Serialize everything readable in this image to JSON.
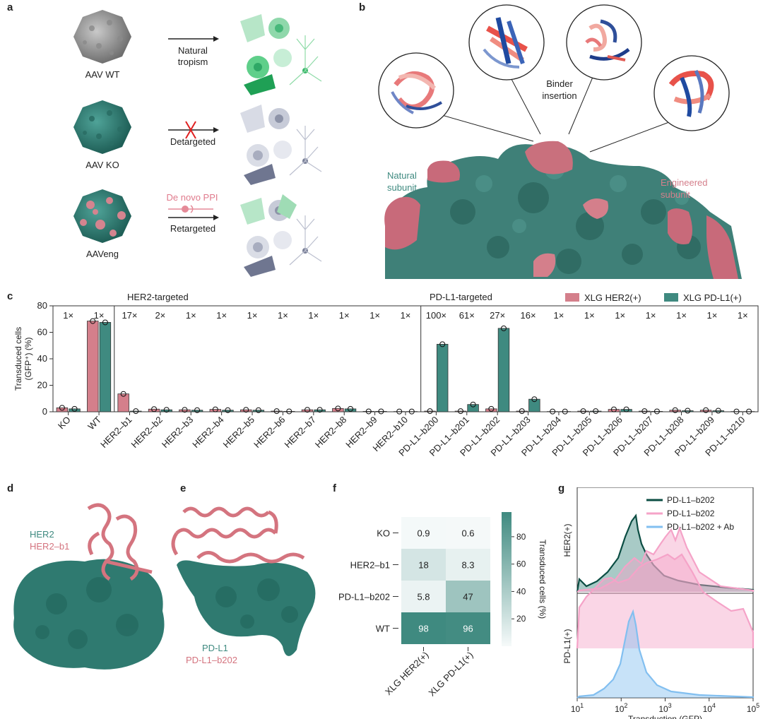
{
  "panels": {
    "a": "a",
    "b": "b",
    "c": "c",
    "d": "d",
    "e": "e",
    "f": "f",
    "g": "g"
  },
  "colors": {
    "teal": "#3f8a80",
    "pink": "#d47f8b",
    "dark_teal": "#0b4d43",
    "light_pink": "#f5a3c8",
    "light_blue": "#82bff0"
  },
  "panel_a": {
    "rows": [
      {
        "caption": "AAV WT",
        "arrow_label": "Natural\ntropism",
        "icon": "aav-wt-capsid-icon"
      },
      {
        "caption": "AAV KO",
        "arrow_label": "Detargeted",
        "icon": "aav-ko-capsid-icon"
      },
      {
        "caption": "AAVeng",
        "arrow_label": "Retargeted",
        "top_label": "De novo PPI",
        "icon": "aav-eng-capsid-icon"
      }
    ]
  },
  "panel_b": {
    "binder_label": "Binder\ninsertion",
    "natural_label": "Natural\nsubunit",
    "engineered_label": "Engineered\nsubunit"
  },
  "panel_c": {
    "chart_data": {
      "type": "bar",
      "ylabel": "Transduced cells\n(GFP⁺) (%)",
      "ylim": [
        0,
        80
      ],
      "yticks": [
        0,
        20,
        40,
        60,
        80
      ],
      "group_labels": [
        "HER2-targeted",
        "PD-L1-targeted"
      ],
      "categories": [
        "KO",
        "WT",
        "HER2–b1",
        "HER2–b2",
        "HER2–b3",
        "HER2–b4",
        "HER2–b5",
        "HER2–b6",
        "HER2–b7",
        "HER2–b8",
        "HER2–b9",
        "HER2–b10",
        "PD-L1–b200",
        "PD-L1–b201",
        "PD-L1–b202",
        "PD-L1–b203",
        "PD-L1–b204",
        "PD-L1–b205",
        "PD-L1–b206",
        "PD-L1–b207",
        "PD-L1–b208",
        "PD-L1–b209",
        "PD-L1–b210"
      ],
      "fold_labels": [
        "1×",
        "1×",
        "17×",
        "2×",
        "1×",
        "1×",
        "1×",
        "1×",
        "1×",
        "1×",
        "1×",
        "1×",
        "100×",
        "61×",
        "27×",
        "16×",
        "1×",
        "1×",
        "1×",
        "1×",
        "1×",
        "1×",
        "1×"
      ],
      "series": [
        {
          "name": "XLG HER2(+)",
          "values": [
            3,
            68.5,
            13.5,
            2,
            1.5,
            1.8,
            1.5,
            0.5,
            1.5,
            2.5,
            0.3,
            0.2,
            0.5,
            0.5,
            2.2,
            0.5,
            0.2,
            0.5,
            1.8,
            0.5,
            1.2,
            1.2,
            0.2
          ]
        },
        {
          "name": "XLG PD-L1(+)",
          "values": [
            2.2,
            67.5,
            0.5,
            1.5,
            1.2,
            1.2,
            1.2,
            0.3,
            1.5,
            2.2,
            0.3,
            0.2,
            51,
            5.5,
            63,
            9.5,
            0.2,
            0.5,
            1.8,
            0.3,
            0.8,
            0.8,
            0.2
          ]
        }
      ],
      "legend": "top-right"
    }
  },
  "panel_d": {
    "target": "HER2",
    "binder": "HER2–b1"
  },
  "panel_e": {
    "target": "PD-L1",
    "binder": "PD-L1–b202"
  },
  "panel_f": {
    "chart_data": {
      "type": "heatmap",
      "rows": [
        "KO",
        "HER2–b1",
        "PD-L1–b202",
        "WT"
      ],
      "columns": [
        "XLG HER2(+)",
        "XLG PD-L1(+)"
      ],
      "values": [
        [
          0.9,
          0.6
        ],
        [
          18,
          8.3
        ],
        [
          5.8,
          47
        ],
        [
          98,
          96
        ]
      ],
      "value_labels": [
        [
          "0.9",
          "0.6"
        ],
        [
          "18",
          "8.3"
        ],
        [
          "5.8",
          "47"
        ],
        [
          "98",
          "96"
        ]
      ],
      "colorbar_label": "Transduced cells (%)",
      "colorbar_ticks": [
        "20",
        "40",
        "60",
        "80"
      ]
    }
  },
  "panel_g": {
    "chart_data": {
      "type": "area",
      "xlabel": "Transduction (GFP)",
      "xscale": "log",
      "xlim": [
        10,
        100000
      ],
      "xticks": [
        "10",
        "10",
        "10",
        "10",
        "10"
      ],
      "xtick_exponents": [
        "1",
        "2",
        "3",
        "4",
        "5"
      ],
      "rows": [
        "HER2(+)",
        "PD-L1(+)"
      ],
      "series": [
        {
          "name": "PD-L1–b202",
          "color": "#0b4d43"
        },
        {
          "name": "PD-L1–b202",
          "color": "#f5a3c8"
        },
        {
          "name": "PD-L1–b202 + Ab",
          "color": "#82bff0"
        }
      ]
    }
  }
}
